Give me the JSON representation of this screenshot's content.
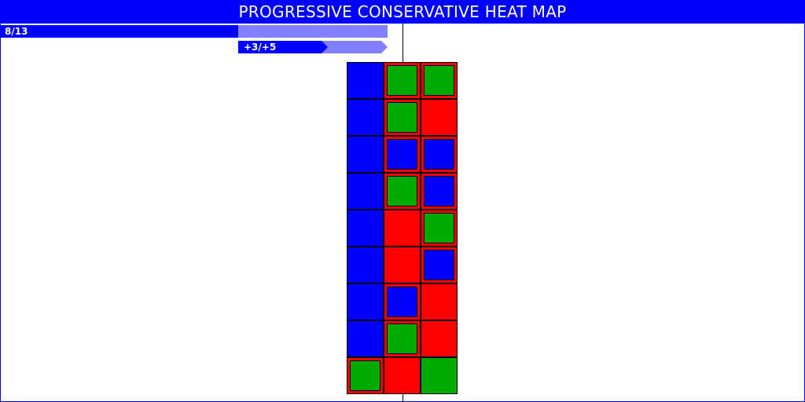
{
  "title": "PROGRESSIVE CONSERVATIVE HEAT MAP",
  "colors": {
    "pc_blue": "#0000ff",
    "pc_light": "#8080ff",
    "red": "#ff0000",
    "green": "#00aa00",
    "white": "#ffffff"
  },
  "seat_bar": {
    "label": "8/13",
    "won": 8,
    "total": 13
  },
  "change_bar": {
    "label": "+3/+5",
    "gained": 3,
    "total": 5
  },
  "chart_data": {
    "type": "heatmap",
    "title": "PROGRESSIVE CONSERVATIVE HEAT MAP",
    "legend": "none",
    "grid": true,
    "columns": 3,
    "rows": 9,
    "cells": [
      [
        {
          "fill": "blue"
        },
        {
          "fill": "red",
          "inner": "green"
        },
        {
          "fill": "red",
          "inner": "green"
        }
      ],
      [
        {
          "fill": "blue"
        },
        {
          "fill": "red",
          "inner": "green"
        },
        {
          "fill": "red"
        }
      ],
      [
        {
          "fill": "blue"
        },
        {
          "fill": "red",
          "inner": "blue"
        },
        {
          "fill": "red",
          "inner": "blue"
        }
      ],
      [
        {
          "fill": "blue"
        },
        {
          "fill": "red",
          "inner": "green"
        },
        {
          "fill": "red",
          "inner": "blue"
        }
      ],
      [
        {
          "fill": "blue"
        },
        {
          "fill": "red"
        },
        {
          "fill": "red",
          "inner": "green"
        }
      ],
      [
        {
          "fill": "blue"
        },
        {
          "fill": "red"
        },
        {
          "fill": "red",
          "inner": "blue"
        }
      ],
      [
        {
          "fill": "blue"
        },
        {
          "fill": "red",
          "inner": "blue"
        },
        {
          "fill": "red"
        }
      ],
      [
        {
          "fill": "blue"
        },
        {
          "fill": "red",
          "inner": "green"
        },
        {
          "fill": "red"
        }
      ],
      [
        {
          "fill": "red",
          "inner": "green"
        },
        {
          "fill": "red"
        },
        {
          "fill": "green"
        }
      ]
    ]
  }
}
